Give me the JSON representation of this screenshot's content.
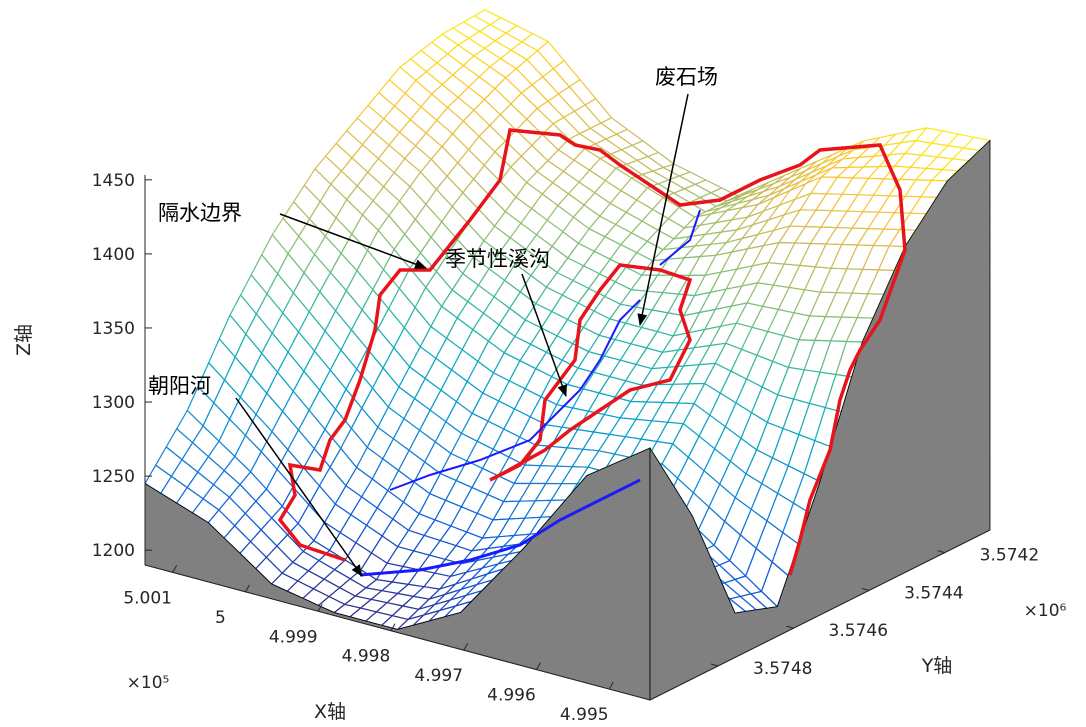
{
  "chart_data": {
    "type": "surface",
    "xlabel": "X轴",
    "ylabel": "Y轴",
    "zlabel": "Z轴",
    "x_exponent": "×10⁵",
    "y_exponent": "×10⁶",
    "x": [
      500138,
      500051,
      499964,
      499878,
      499791,
      499704,
      499617,
      499531,
      499444
    ],
    "y": [
      3574980,
      3574868,
      3574755,
      3574643,
      3574530,
      3574418,
      3574305,
      3574193,
      3574080
    ],
    "z": [
      [
        1245,
        1230,
        1200,
        1192,
        1192,
        1215,
        1270,
        1330,
        1360
      ],
      [
        1280,
        1250,
        1215,
        1200,
        1205,
        1230,
        1260,
        1290,
        1300
      ],
      [
        1330,
        1290,
        1250,
        1230,
        1225,
        1240,
        1250,
        1240,
        1220
      ],
      [
        1370,
        1330,
        1290,
        1270,
        1260,
        1270,
        1270,
        1240,
        1210
      ],
      [
        1400,
        1370,
        1330,
        1310,
        1300,
        1300,
        1310,
        1290,
        1280
      ],
      [
        1420,
        1395,
        1360,
        1340,
        1330,
        1330,
        1350,
        1350,
        1360
      ],
      [
        1440,
        1415,
        1385,
        1365,
        1355,
        1370,
        1390,
        1400,
        1410
      ],
      [
        1448,
        1430,
        1400,
        1385,
        1370,
        1390,
        1420,
        1430,
        1440
      ],
      [
        1450,
        1440,
        1400,
        1380,
        1370,
        1400,
        1430,
        1450,
        1453
      ]
    ],
    "xlim": [
      499444,
      500138
    ],
    "ylim": [
      3574080,
      3574980
    ],
    "zlim": [
      1190,
      1460
    ],
    "xticks": [
      {
        "value": 500100,
        "label": "5.001"
      },
      {
        "value": 500000,
        "label": "5"
      },
      {
        "value": 499900,
        "label": "4.999"
      },
      {
        "value": 499800,
        "label": "4.998"
      },
      {
        "value": 499700,
        "label": "4.997"
      },
      {
        "value": 499600,
        "label": "4.996"
      },
      {
        "value": 499500,
        "label": "4.995"
      }
    ],
    "yticks": [
      {
        "value": 3574200,
        "label": "3.5742"
      },
      {
        "value": 3574400,
        "label": "3.5744"
      },
      {
        "value": 3574600,
        "label": "3.5746"
      },
      {
        "value": 3574800,
        "label": "3.5748"
      }
    ],
    "zticks": [
      1200,
      1250,
      1300,
      1350,
      1400,
      1450
    ],
    "colormap": [
      "#352a87",
      "#0f5cdd",
      "#1481d6",
      "#06a4ca",
      "#2eb7a4",
      "#87bf77",
      "#d1bb59",
      "#fec832",
      "#f9fb0e"
    ],
    "wall_color": "#808080",
    "annotations": [
      {
        "text": "隔水边界"
      },
      {
        "text": "季节性溪沟"
      },
      {
        "text": "废石场"
      },
      {
        "text": "朝阳河"
      }
    ]
  }
}
